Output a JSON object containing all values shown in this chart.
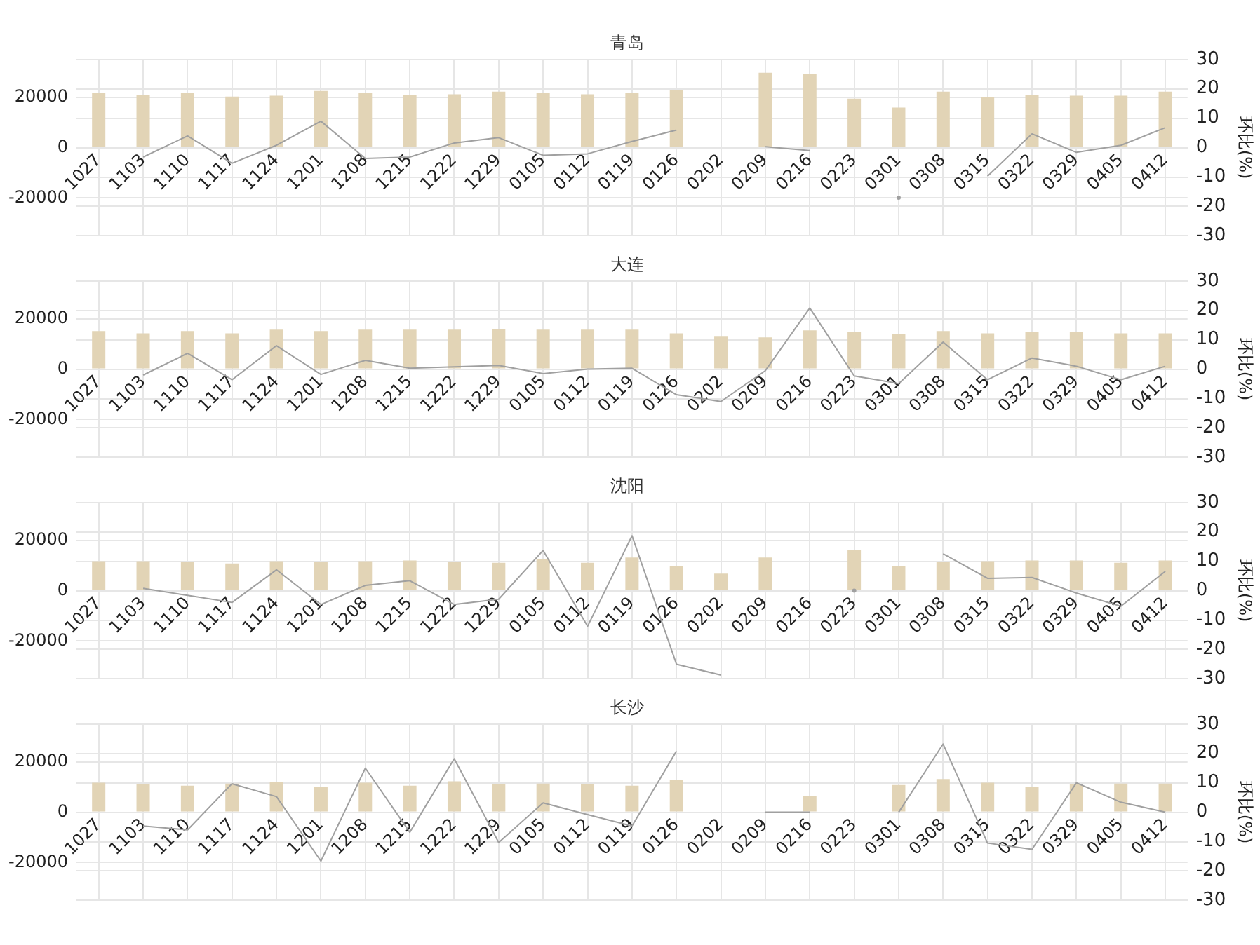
{
  "chart_data": [
    {
      "type": "bar",
      "title": "青岛",
      "categories": [
        "1027",
        "1103",
        "1110",
        "1117",
        "1124",
        "1201",
        "1208",
        "1215",
        "1222",
        "1229",
        "0105",
        "0112",
        "0119",
        "0126",
        "0202",
        "0209",
        "0216",
        "0223",
        "0301",
        "0308",
        "0315",
        "0322",
        "0329",
        "0405",
        "0412"
      ],
      "series": [
        {
          "color": "#e2d4b6",
          "values": [
            21900,
            20900,
            21900,
            20300,
            20600,
            22500,
            21900,
            20900,
            21200,
            22200,
            21600,
            21200,
            21600,
            22800,
            null,
            29700,
            29400,
            19400,
            15900,
            22200,
            20000,
            20900,
            20600,
            20600,
            22200
          ]
        },
        {
          "type": "line",
          "axis": "y2",
          "color": "#a0a0a0",
          "values": [
            null,
            -3.2,
            4,
            -5.3,
            0.8,
            9,
            -3.7,
            -3.2,
            1.6,
            3.4,
            -2.6,
            -2.1,
            2.1,
            6,
            null,
            0.3,
            -1,
            null,
            -17,
            null,
            -9.7,
            4.7,
            -1.6,
            0.8,
            6.8
          ]
        }
      ],
      "ylim": [
        -35000,
        35000
      ],
      "yticks": [
        -20000,
        0,
        20000
      ],
      "y2lim": [
        -30,
        30
      ],
      "y2ticks": [
        -30,
        -20,
        -10,
        0,
        10,
        20,
        30
      ],
      "y2label": "环比(%)",
      "grid": true,
      "legend": false
    },
    {
      "type": "bar",
      "title": "大连",
      "categories": [
        "1027",
        "1103",
        "1110",
        "1117",
        "1124",
        "1201",
        "1208",
        "1215",
        "1222",
        "1229",
        "0105",
        "0112",
        "0119",
        "0126",
        "0202",
        "0209",
        "0216",
        "0223",
        "0301",
        "0308",
        "0315",
        "0322",
        "0329",
        "0405",
        "0412"
      ],
      "series": [
        {
          "color": "#e2d4b6",
          "values": [
            15100,
            14200,
            15100,
            14200,
            15700,
            15100,
            15700,
            15700,
            15700,
            16000,
            15700,
            15700,
            15700,
            14200,
            12900,
            12600,
            15400,
            14800,
            13800,
            15100,
            14200,
            14800,
            14800,
            14200,
            14200
          ]
        },
        {
          "type": "line",
          "axis": "y2",
          "color": "#a0a0a0",
          "values": [
            null,
            -2,
            5.4,
            -3.6,
            8,
            -1.8,
            3,
            0.3,
            0.8,
            1.3,
            -1.5,
            0,
            0.3,
            -8.7,
            -11,
            -0.5,
            20.8,
            -2.3,
            -4.9,
            9.2,
            -3.6,
            3.8,
            1,
            -3.6,
            1
          ]
        }
      ],
      "ylim": [
        -35000,
        35000
      ],
      "yticks": [
        -20000,
        0,
        20000
      ],
      "y2lim": [
        -30,
        30
      ],
      "y2ticks": [
        -30,
        -20,
        -10,
        0,
        10,
        20,
        30
      ],
      "y2label": "环比(%)",
      "grid": true,
      "legend": false
    },
    {
      "type": "bar",
      "title": "沈阳",
      "categories": [
        "1027",
        "1103",
        "1110",
        "1117",
        "1124",
        "1201",
        "1208",
        "1215",
        "1222",
        "1229",
        "0105",
        "0112",
        "0119",
        "0126",
        "0202",
        "0209",
        "0216",
        "0223",
        "0301",
        "0308",
        "0315",
        "0322",
        "0329",
        "0405",
        "0412"
      ],
      "series": [
        {
          "color": "#e2d4b6",
          "values": [
            11700,
            11700,
            11400,
            10800,
            11700,
            11400,
            11700,
            12000,
            11400,
            11100,
            12600,
            11100,
            13200,
            9800,
            6800,
            13200,
            null,
            16000,
            9800,
            11400,
            11700,
            12000,
            12000,
            11100,
            12000
          ]
        },
        {
          "type": "line",
          "axis": "y2",
          "color": "#a0a0a0",
          "values": [
            null,
            0.8,
            -1.6,
            -4,
            7.1,
            -4.7,
            1.8,
            3.4,
            -4.7,
            -2.9,
            13.7,
            -12.1,
            18.7,
            -25,
            -28.7,
            null,
            null,
            0,
            null,
            12.6,
            4.2,
            4.5,
            -0.8,
            -5.3,
            6.6
          ]
        }
      ],
      "ylim": [
        -35000,
        35000
      ],
      "yticks": [
        -20000,
        0,
        20000
      ],
      "y2lim": [
        -30,
        30
      ],
      "y2ticks": [
        -30,
        -20,
        -10,
        0,
        10,
        20,
        30
      ],
      "y2label": "环比(%)",
      "grid": true,
      "legend": false
    },
    {
      "type": "bar",
      "title": "长沙",
      "categories": [
        "1027",
        "1103",
        "1110",
        "1117",
        "1124",
        "1201",
        "1208",
        "1215",
        "1222",
        "1229",
        "0105",
        "0112",
        "0119",
        "0126",
        "0202",
        "0209",
        "0216",
        "0223",
        "0301",
        "0308",
        "0315",
        "0322",
        "0329",
        "0405",
        "0412"
      ],
      "series": [
        {
          "color": "#e2d4b6",
          "values": [
            11700,
            11100,
            10500,
            11400,
            12000,
            10200,
            11700,
            10500,
            12300,
            11100,
            11400,
            11100,
            10500,
            12900,
            null,
            null,
            6500,
            null,
            10800,
            13200,
            11700,
            10200,
            11100,
            11400,
            11400
          ]
        },
        {
          "type": "line",
          "axis": "y2",
          "color": "#a0a0a0",
          "values": [
            null,
            -4.7,
            -6,
            9.7,
            5.3,
            -16.6,
            15,
            -6.8,
            18.2,
            -10.3,
            3.2,
            -0.8,
            -4.7,
            20.8,
            null,
            0,
            0,
            null,
            0,
            23.2,
            -10.5,
            -12.6,
            10,
            3.4,
            0
          ]
        }
      ],
      "ylim": [
        -35000,
        35000
      ],
      "yticks": [
        -20000,
        0,
        20000
      ],
      "y2lim": [
        -30,
        30
      ],
      "y2ticks": [
        -30,
        -20,
        -10,
        0,
        10,
        20,
        30
      ],
      "y2label": "环比(%)",
      "grid": true,
      "legend": false
    }
  ]
}
